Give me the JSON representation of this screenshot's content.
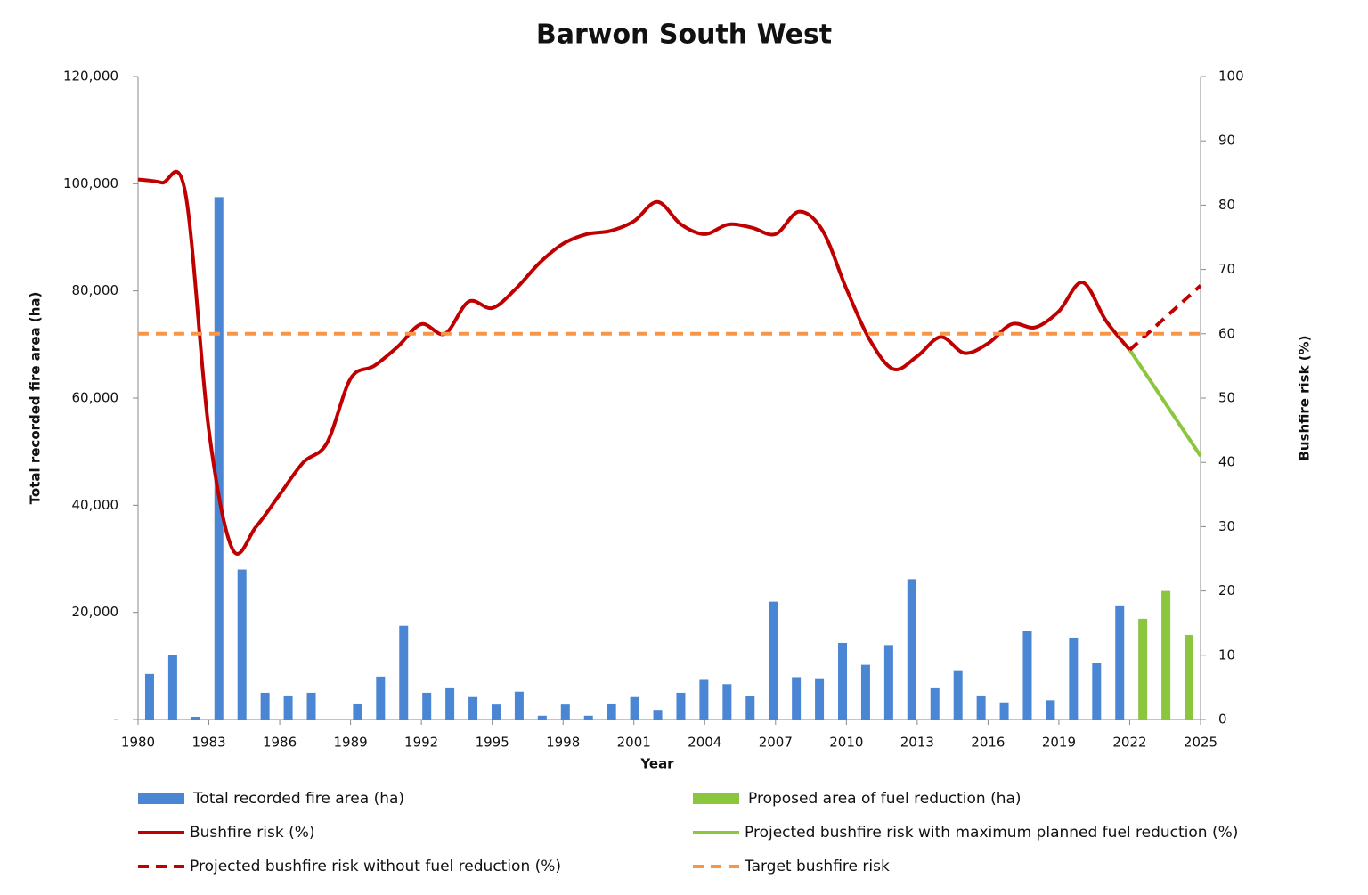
{
  "chart_data": {
    "type": "combo",
    "title": "Barwon South West",
    "x_label": "Year",
    "y_label": "Total recorded fire area (ha)",
    "y2_label": "Bushfire risk (%)",
    "xlim": [
      1980,
      2025
    ],
    "xticks": [
      1980,
      1983,
      1986,
      1989,
      1992,
      1995,
      1998,
      2001,
      2004,
      2007,
      2010,
      2013,
      2016,
      2019,
      2022,
      2025
    ],
    "ylim": [
      0,
      120000
    ],
    "yticks": [
      {
        "value": 0,
        "label": "-"
      },
      {
        "value": 20000,
        "label": "20,000"
      },
      {
        "value": 40000,
        "label": "40,000"
      },
      {
        "value": 60000,
        "label": "60,000"
      },
      {
        "value": 80000,
        "label": "80,000"
      },
      {
        "value": 100000,
        "label": "100,000"
      },
      {
        "value": 120000,
        "label": "120,000"
      }
    ],
    "y2lim": [
      0,
      100
    ],
    "y2ticks": [
      0,
      10,
      20,
      30,
      40,
      50,
      60,
      70,
      80,
      90,
      100
    ],
    "series": [
      {
        "name": "Total recorded fire area (ha)",
        "type": "bar",
        "color": "#4a86d4",
        "x": [
          1980,
          1981,
          1982,
          1983,
          1984,
          1985,
          1986,
          1987,
          1988,
          1989,
          1990,
          1991,
          1992,
          1993,
          1994,
          1995,
          1996,
          1997,
          1998,
          1999,
          2000,
          2001,
          2002,
          2003,
          2004,
          2005,
          2006,
          2007,
          2008,
          2009,
          2010,
          2011,
          2012,
          2013,
          2014,
          2015,
          2016,
          2017,
          2018,
          2019,
          2020,
          2021,
          2022
        ],
        "values": [
          8500,
          12000,
          500,
          97500,
          28000,
          5000,
          4500,
          5000,
          0,
          3000,
          8000,
          17500,
          5000,
          6000,
          4200,
          2800,
          5200,
          700,
          2800,
          700,
          3000,
          4200,
          1800,
          5000,
          7400,
          6600,
          4400,
          22000,
          7900,
          7700,
          14300,
          10200,
          13900,
          26200,
          6000,
          9200,
          4500,
          3200,
          16600,
          3600,
          15300,
          10600,
          21300
        ]
      },
      {
        "name": "Proposed area of fuel reduction (ha)",
        "type": "bar",
        "color": "#8cc63f",
        "x": [
          2023,
          2024,
          2025
        ],
        "values": [
          18800,
          24000,
          15800
        ]
      },
      {
        "name": "Bushfire risk (%)",
        "type": "line",
        "axis": "y2",
        "color": "#c00000",
        "linestyle": "solid",
        "x": [
          1980,
          1981,
          1982,
          1983,
          1984,
          1985,
          1986,
          1987,
          1988,
          1989,
          1990,
          1991,
          1992,
          1993,
          1994,
          1995,
          1996,
          1997,
          1998,
          1999,
          2000,
          2001,
          2002,
          2003,
          2004,
          2005,
          2006,
          2007,
          2008,
          2009,
          2010,
          2011,
          2012,
          2013,
          2014,
          2015,
          2016,
          2017,
          2018,
          2019,
          2020,
          2021,
          2022
        ],
        "values": [
          84,
          83.5,
          82,
          45,
          26.5,
          30,
          35,
          40,
          43,
          53,
          55,
          58,
          61.5,
          60,
          65,
          64,
          67,
          71,
          74,
          75.5,
          76,
          77.5,
          80.5,
          77,
          75.5,
          77,
          76.5,
          75.5,
          79,
          76,
          67,
          59,
          54.5,
          56.5,
          59.5,
          57,
          58.5,
          61.5,
          61,
          63.5,
          68,
          62,
          57.5
        ]
      },
      {
        "name": "Projected bushfire risk with maximum planned fuel reduction (%)",
        "type": "line",
        "axis": "y2",
        "color": "#8cc63f",
        "linestyle": "solid",
        "x": [
          2022,
          2025
        ],
        "values": [
          57.5,
          41
        ]
      },
      {
        "name": "Projected bushfire risk without fuel reduction (%)",
        "type": "line",
        "axis": "y2",
        "color": "#c00000",
        "linestyle": "dashed",
        "x": [
          2022,
          2025
        ],
        "values": [
          57.5,
          67.5
        ]
      },
      {
        "name": "Target bushfire risk",
        "type": "line",
        "axis": "y2",
        "color": "#f79646",
        "linestyle": "dashed",
        "x": [
          1980,
          2025
        ],
        "values": [
          60,
          60
        ]
      }
    ]
  }
}
